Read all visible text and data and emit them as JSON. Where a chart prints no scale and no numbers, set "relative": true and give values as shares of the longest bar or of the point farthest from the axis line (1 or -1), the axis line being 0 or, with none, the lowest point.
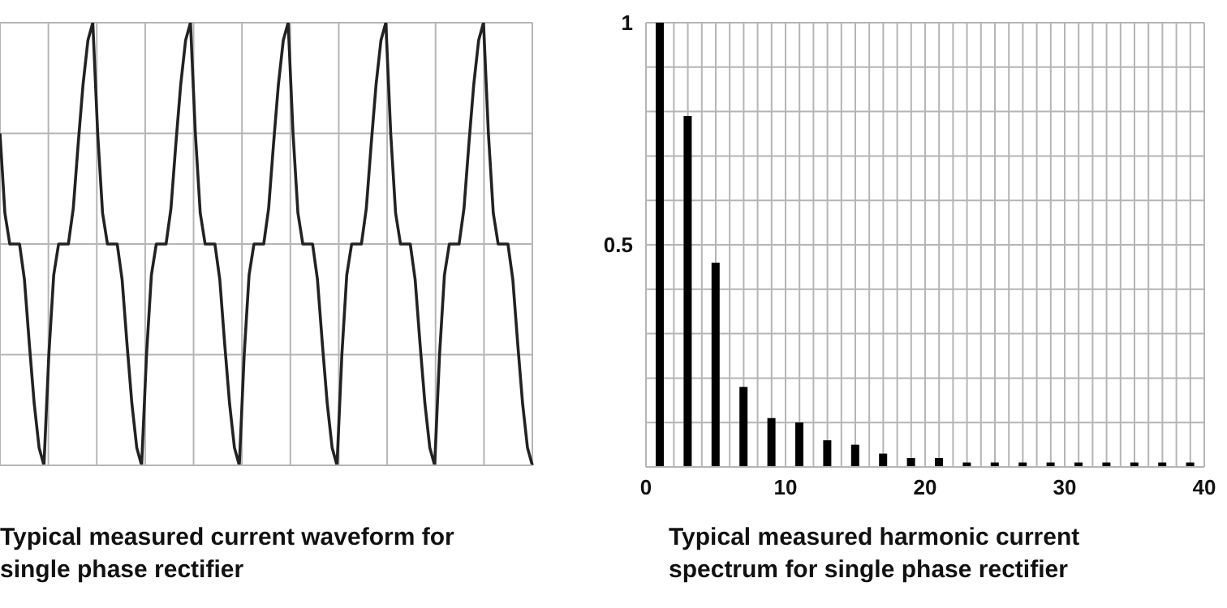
{
  "chart_data": [
    {
      "type": "line",
      "title": "Typical measured current waveform for single phase rectifier",
      "relative": true,
      "grid": true,
      "categories": [
        null,
        null,
        null,
        null,
        null,
        null,
        null,
        null,
        null,
        null,
        null,
        null,
        null,
        null,
        null,
        null,
        null,
        null,
        null,
        null,
        null,
        null,
        null,
        null,
        null,
        null,
        null,
        null,
        null,
        null,
        null,
        null,
        null,
        null,
        null,
        null,
        null,
        null,
        null,
        null,
        null,
        null,
        null,
        null,
        null,
        null,
        null,
        null,
        null,
        null,
        null,
        null,
        null,
        null,
        null,
        null,
        null,
        null,
        null,
        null,
        null,
        null,
        null,
        null,
        null,
        null,
        null,
        null,
        null,
        null,
        null,
        null,
        null,
        null,
        null,
        null,
        null,
        null,
        null,
        null,
        null,
        null,
        null,
        null,
        null,
        null,
        null,
        null,
        null,
        null,
        null,
        null,
        null,
        null,
        null,
        null,
        null,
        null,
        null,
        null,
        null,
        null,
        null,
        null,
        null,
        null,
        null,
        null,
        null,
        null
      ],
      "series": [
        {
          "color": "#222222",
          "values": [
            0.75,
            0.57,
            0.5,
            0.5,
            0.5,
            0.42,
            0.275,
            0.14,
            0.04,
            0,
            0.25,
            0.43,
            0.5,
            0.5,
            0.5,
            0.58,
            0.725,
            0.86,
            0.96,
            1,
            0.75,
            0.57,
            0.5,
            0.5,
            0.5,
            0.42,
            0.275,
            0.14,
            0.04,
            0,
            0.25,
            0.43,
            0.5,
            0.5,
            0.5,
            0.58,
            0.725,
            0.86,
            0.96,
            1,
            0.75,
            0.57,
            0.5,
            0.5,
            0.5,
            0.42,
            0.275,
            0.14,
            0.04,
            0,
            0.25,
            0.43,
            0.5,
            0.5,
            0.5,
            0.58,
            0.725,
            0.86,
            0.96,
            1,
            0.75,
            0.57,
            0.5,
            0.5,
            0.5,
            0.42,
            0.275,
            0.14,
            0.04,
            0,
            0.25,
            0.43,
            0.5,
            0.5,
            0.5,
            0.58,
            0.725,
            0.86,
            0.96,
            1,
            0.75,
            0.57,
            0.5,
            0.5,
            0.5,
            0.42,
            0.275,
            0.14,
            0.04,
            0,
            0.25,
            0.43,
            0.5,
            0.5,
            0.5,
            0.58,
            0.725,
            0.86,
            0.96,
            1,
            0.75,
            0.57,
            0.5,
            0.5,
            0.5,
            0.42,
            0.275,
            0.14,
            0.04,
            0
          ]
        }
      ]
    },
    {
      "type": "bar",
      "title": "Typical measured harmonic current spectrum for single phase rectifier",
      "grid": true,
      "xlim": [
        0,
        40
      ],
      "ylim": [
        0,
        1
      ],
      "xticks": [
        0,
        {
          "value": 2,
          "label": null
        },
        {
          "value": 3,
          "label": null
        },
        {
          "value": 4,
          "label": null
        },
        {
          "value": 5,
          "label": null
        },
        {
          "value": 6,
          "label": null
        },
        {
          "value": 7,
          "label": null
        },
        {
          "value": 8,
          "label": null
        },
        {
          "value": 9,
          "label": null
        },
        10,
        {
          "value": 11,
          "label": null
        },
        {
          "value": 12,
          "label": null
        },
        {
          "value": 13,
          "label": null
        },
        {
          "value": 14,
          "label": null
        },
        {
          "value": 15,
          "label": null
        },
        {
          "value": 16,
          "label": null
        },
        {
          "value": 17,
          "label": null
        },
        {
          "value": 18,
          "label": null
        },
        {
          "value": 19,
          "label": null
        },
        20,
        {
          "value": 21,
          "label": null
        },
        {
          "value": 22,
          "label": null
        },
        {
          "value": 23,
          "label": null
        },
        {
          "value": 24,
          "label": null
        },
        {
          "value": 25,
          "label": null
        },
        {
          "value": 26,
          "label": null
        },
        {
          "value": 27,
          "label": null
        },
        {
          "value": 28,
          "label": null
        },
        {
          "value": 29,
          "label": null
        },
        30,
        {
          "value": 31,
          "label": null
        },
        {
          "value": 32,
          "label": null
        },
        {
          "value": 33,
          "label": null
        },
        {
          "value": 34,
          "label": null
        },
        {
          "value": 35,
          "label": null
        },
        {
          "value": 36,
          "label": null
        },
        {
          "value": 37,
          "label": null
        },
        {
          "value": 38,
          "label": null
        },
        {
          "value": 39,
          "label": null
        },
        40
      ],
      "yticks": [
        {
          "value": 0,
          "label": null
        },
        {
          "value": 0.1,
          "label": null
        },
        {
          "value": 0.2,
          "label": null
        },
        {
          "value": 0.3,
          "label": null
        },
        {
          "value": 0.4,
          "label": null
        },
        0.5,
        {
          "value": 0.6,
          "label": null
        },
        {
          "value": 0.7,
          "label": null
        },
        {
          "value": 0.8,
          "label": null
        },
        {
          "value": 0.9,
          "label": null
        },
        1
      ],
      "x": [
        1,
        3,
        5,
        7,
        9,
        11,
        13,
        15,
        17,
        19,
        21,
        23,
        25,
        27,
        29,
        31,
        33,
        35,
        37,
        39
      ],
      "series": [
        {
          "color": "#000000",
          "values": [
            1,
            0.79,
            0.46,
            0.18,
            0.11,
            0.1,
            0.06,
            0.05,
            0.03,
            0.02,
            0.02,
            0.01,
            0.01,
            0.01,
            0.01,
            0.01,
            0.01,
            0.01,
            0.01,
            0.01
          ]
        }
      ]
    }
  ]
}
